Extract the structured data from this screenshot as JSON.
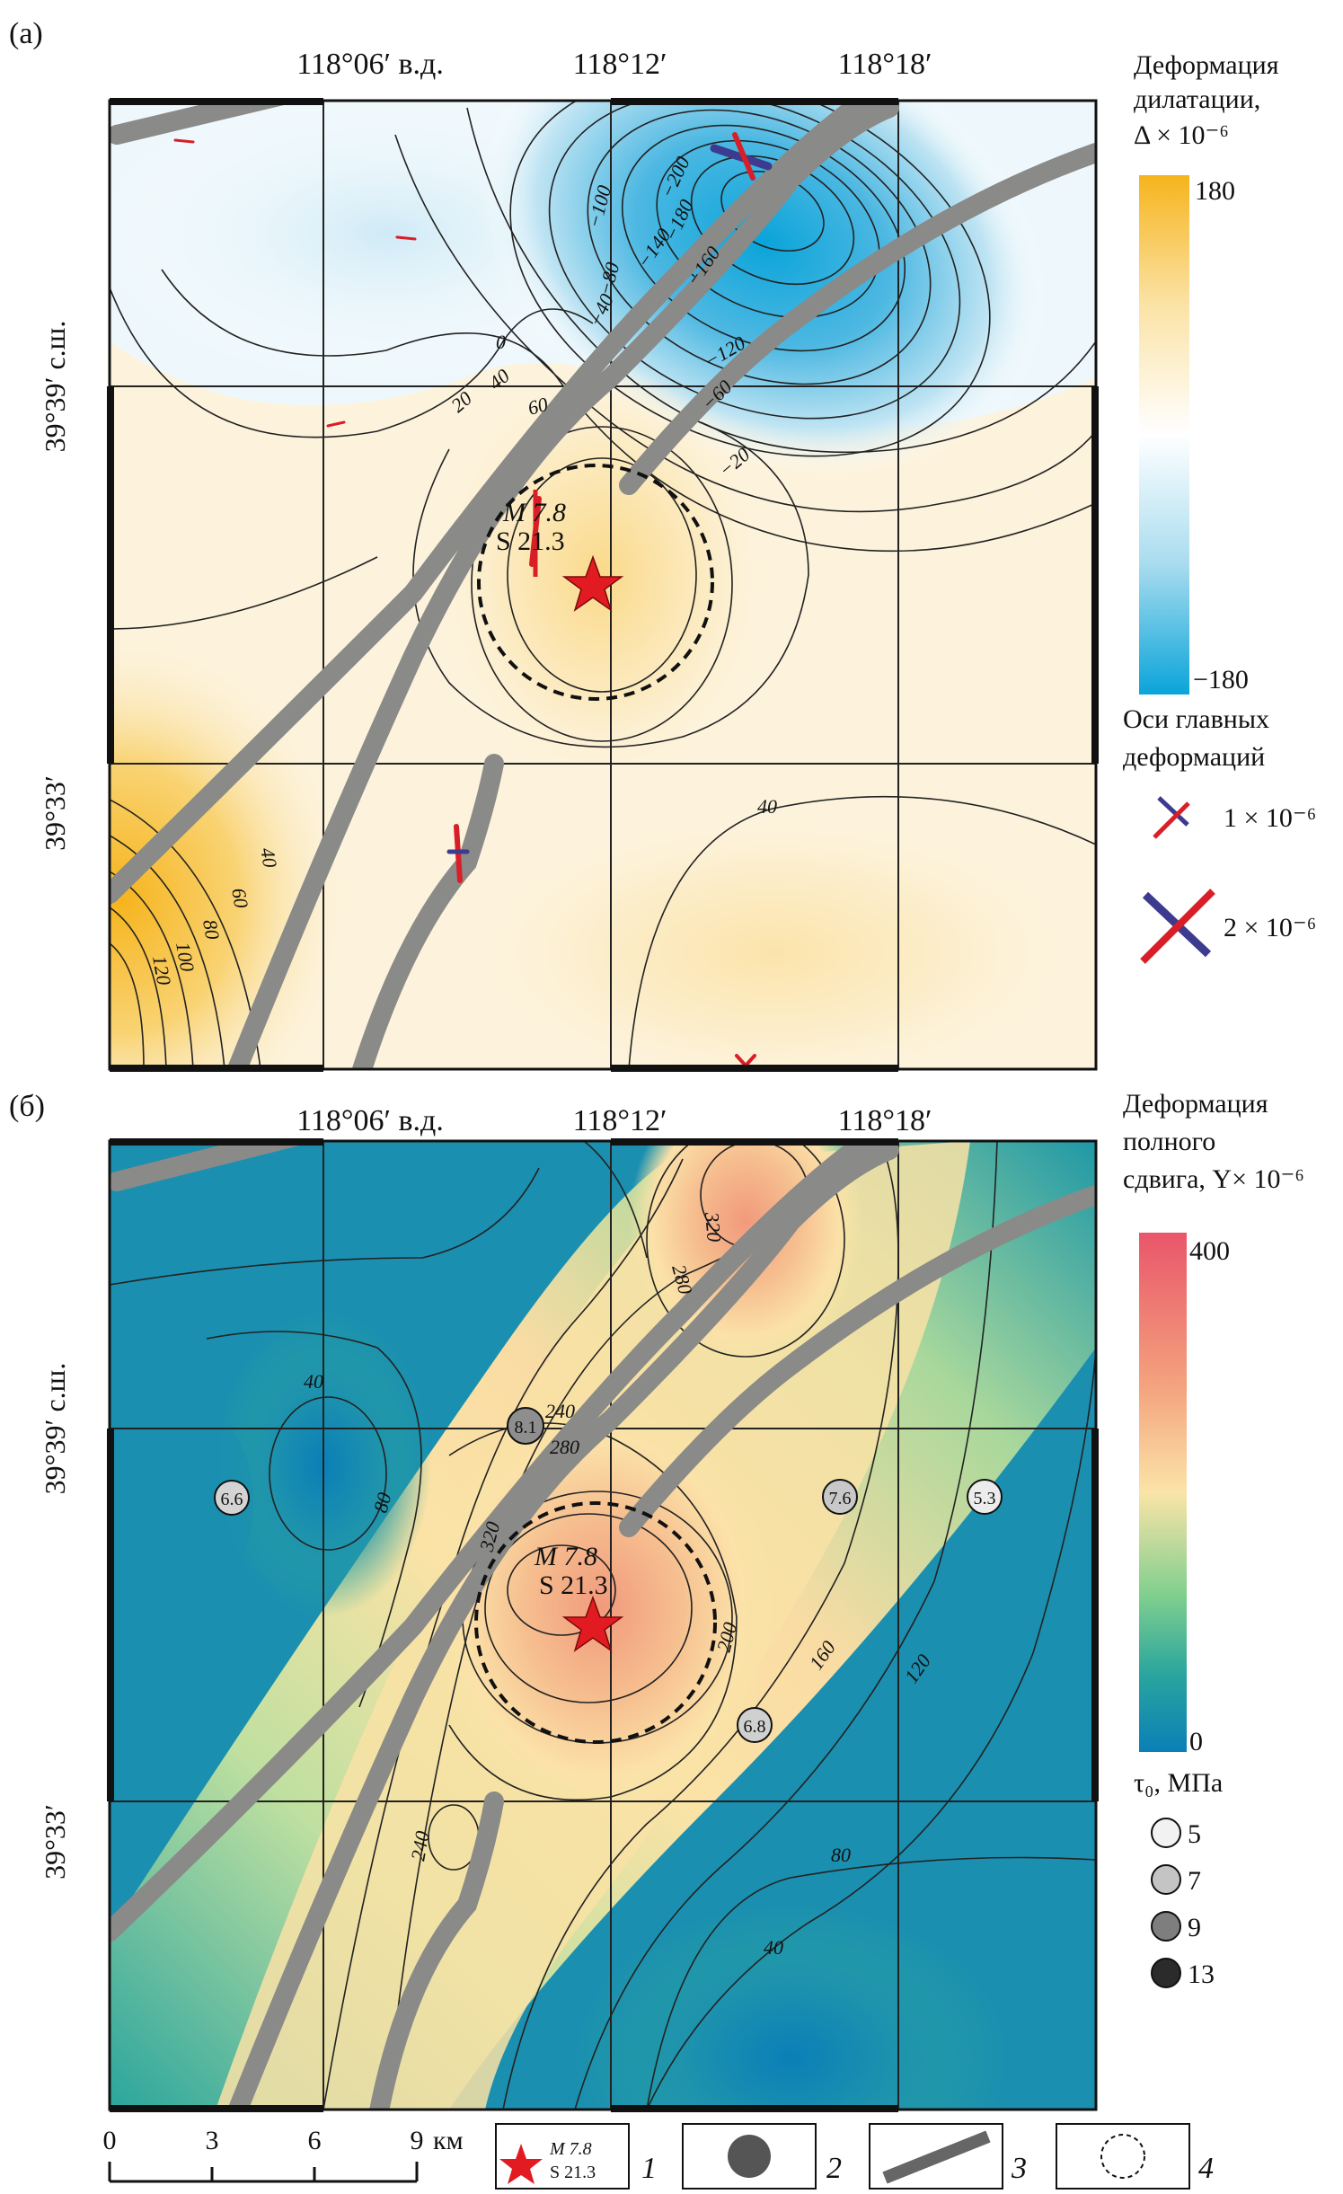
{
  "panels": [
    {
      "letter": "(а)",
      "lon_labels": [
        "118°06′ в.д.",
        "118°12′",
        "118°18′"
      ],
      "lat_labels": [
        "39°39′ с.ш.",
        "39°33′"
      ],
      "legend_title": [
        "Деформация",
        "дилатации,",
        "Δ × 10⁻⁶"
      ],
      "scale_max": "180",
      "scale_min": "−180",
      "colors": [
        "#f6b41d",
        "#fbe9b6",
        "#ffffff",
        "#a8dcef",
        "#0aa4d9"
      ],
      "axes_title": [
        "Оси главных",
        "деформаций"
      ],
      "axes_items": [
        "1 × 10⁻⁶",
        "2 × 10⁻⁶"
      ],
      "contour_labels": [
        "−200",
        "−180",
        "−160",
        "−140",
        "−120",
        "−100",
        "−80",
        "−60",
        "−40",
        "−20",
        "0",
        "20",
        "40",
        "60",
        "40",
        "40",
        "60",
        "80",
        "100",
        "120"
      ],
      "event": {
        "magnitude": "M 7.8",
        "code": "S 21.3"
      }
    },
    {
      "letter": "(б)",
      "lon_labels": [
        "118°06′ в.д.",
        "118°12′",
        "118°18′"
      ],
      "lat_labels": [
        "39°39′ с.ш.",
        "39°33′"
      ],
      "legend_title": [
        "Деформация",
        "полного",
        "сдвига, Y× 10⁻⁶"
      ],
      "scale_max": "400",
      "scale_min": "0",
      "colors": [
        "#e9566a",
        "#f4a47e",
        "#fbe4a8",
        "#cfe4a2",
        "#2aa59e",
        "#0a7fb7"
      ],
      "tau_title": "τ₀, МПа",
      "tau_items": [
        "5",
        "7",
        "9",
        "13"
      ],
      "contour_labels": [
        "320",
        "280",
        "240",
        "280",
        "320",
        "200",
        "160",
        "120",
        "80",
        "40",
        "80",
        "40",
        "240"
      ],
      "stations": [
        "8.1",
        "6.6",
        "7.6",
        "5.3",
        "6.8"
      ],
      "event": {
        "magnitude": "M 7.8",
        "code": "S 21.3"
      }
    }
  ],
  "scale_bar": {
    "ticks": [
      "0",
      "3",
      "6",
      "9"
    ],
    "unit": "км"
  },
  "legend_items": [
    {
      "num": "1",
      "symbol": "epicenter-star",
      "magnitude": "M 7.8",
      "code": "S 21.3"
    },
    {
      "num": "2",
      "symbol": "station-circle"
    },
    {
      "num": "3",
      "symbol": "fault-line"
    },
    {
      "num": "4",
      "symbol": "dashed-circle"
    }
  ]
}
